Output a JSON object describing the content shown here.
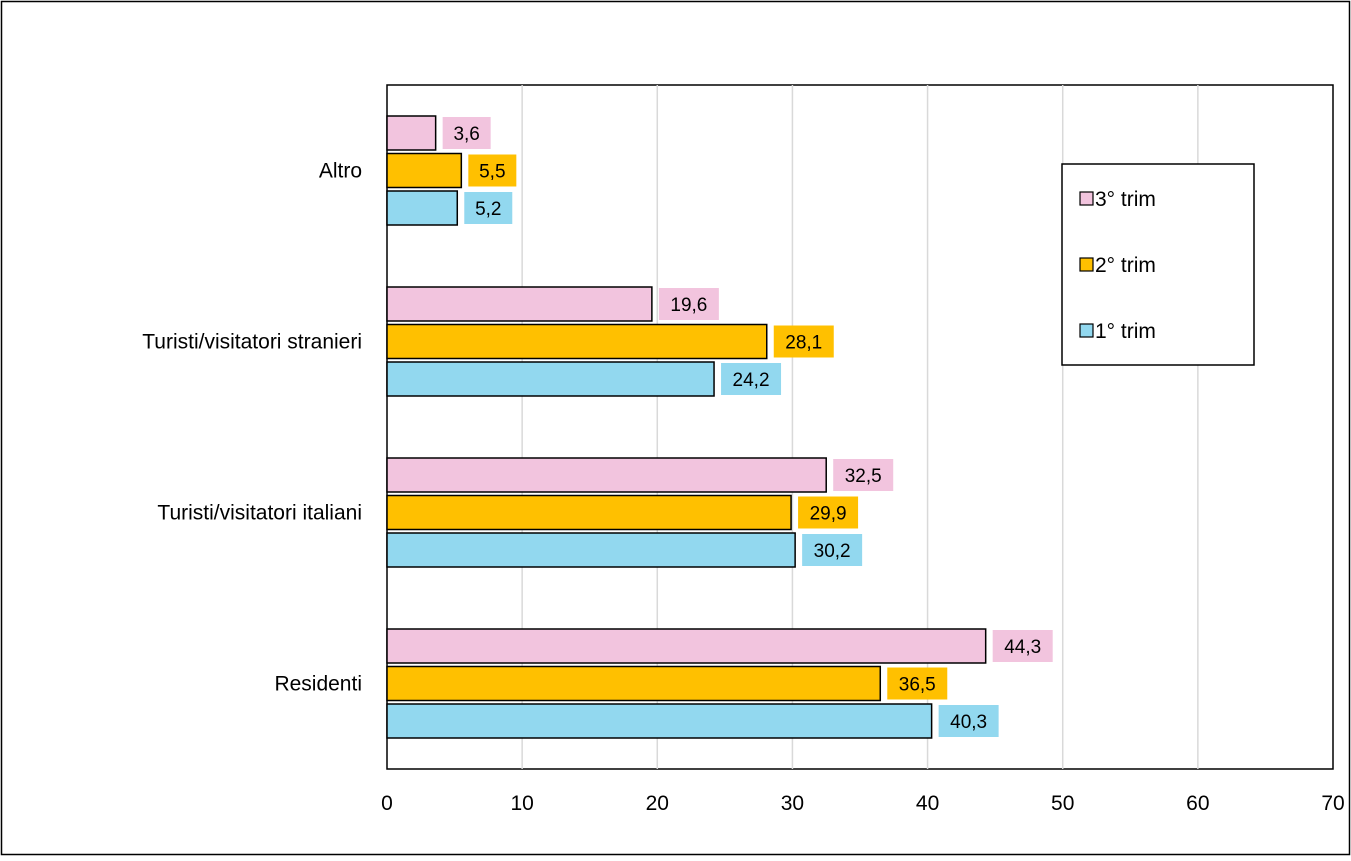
{
  "chart_data": {
    "type": "bar",
    "orientation": "horizontal",
    "categories": [
      "Altro",
      "Turisti/visitatori stranieri",
      "Turisti/visitatori italiani",
      "Residenti"
    ],
    "series": [
      {
        "name": "3° trim",
        "color": "#f2c4de",
        "values": [
          3.6,
          19.6,
          32.5,
          44.3
        ],
        "labels": [
          "3,6",
          "19,6",
          "32,5",
          "44,3"
        ]
      },
      {
        "name": "2° trim",
        "color": "#ffc000",
        "values": [
          5.5,
          28.1,
          29.9,
          36.5
        ],
        "labels": [
          "5,5",
          "28,1",
          "29,9",
          "36,5"
        ]
      },
      {
        "name": "1° trim",
        "color": "#92d8ef",
        "values": [
          5.2,
          24.2,
          30.2,
          40.3
        ],
        "labels": [
          "5,2",
          "24,2",
          "30,2",
          "40,3"
        ]
      }
    ],
    "xlim": [
      0,
      70
    ],
    "xticks": [
      0,
      10,
      20,
      30,
      40,
      50,
      60,
      70
    ],
    "grid": "vertical",
    "legend": "right",
    "title": "",
    "xlabel": "",
    "ylabel": ""
  }
}
